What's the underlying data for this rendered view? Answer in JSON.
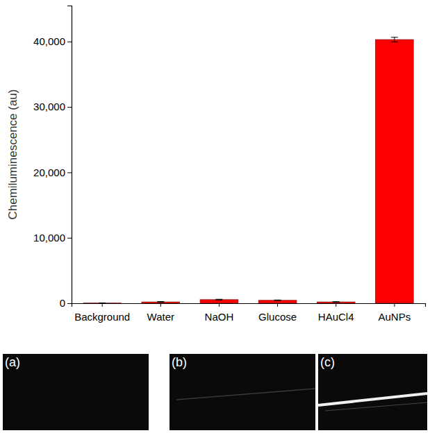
{
  "chart_data": {
    "type": "bar",
    "y_label": "Chemiluminescence (au)",
    "categories": [
      "Background",
      "Water",
      "NaOH",
      "Glucose",
      "HAuCl4",
      "AuNPs"
    ],
    "values": [
      30,
      200,
      550,
      450,
      200,
      40300
    ],
    "errors": [
      20,
      50,
      60,
      50,
      40,
      350
    ],
    "color": "#ff0000",
    "ylim": [
      0,
      45500
    ],
    "yticks": [
      0,
      {
        "value": 10000,
        "label": "10,000"
      },
      {
        "value": 20000,
        "label": "20,000"
      },
      {
        "value": 30000,
        "label": "30,000"
      },
      {
        "value": 40000,
        "label": "40,000"
      }
    ],
    "grid": false
  },
  "panels": [
    {
      "label": "(a)"
    },
    {
      "label": "(b)"
    },
    {
      "label": "(c)"
    }
  ]
}
